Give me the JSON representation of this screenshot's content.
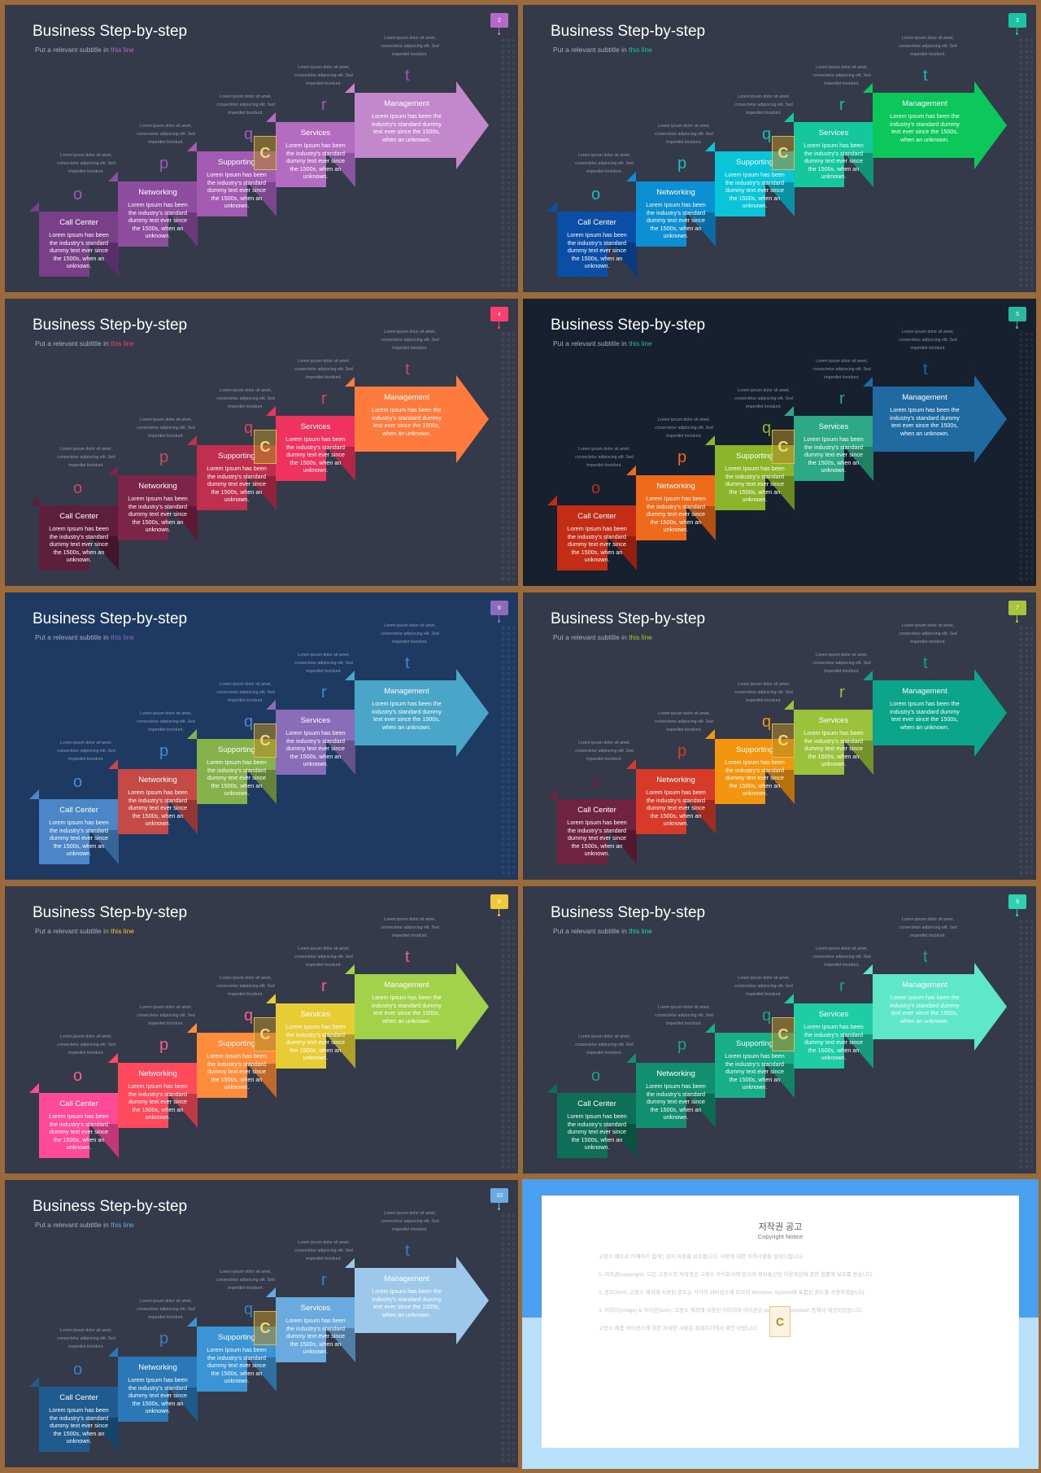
{
  "common": {
    "title": "Business Step-by-step",
    "subtitle_prefix": "Put a relevant subtitle in ",
    "subtitle_highlight": "this line",
    "note_text": "Lorem ipsum dolor sit amet, consectetur adipiscing elit. Sed imperdiet tincidunt.",
    "step_body": "Lorem Ipsum has been the industry's standard dummy text ever since the 1500s, when an unknown.",
    "steps": [
      "Call Center",
      "Networking",
      "Supporting",
      "Services",
      "Management"
    ],
    "letters": [
      "o",
      "p",
      "q",
      "r",
      "t"
    ],
    "logo_letter": "C"
  },
  "slides": [
    {
      "page": "2",
      "bg": "#343a4a",
      "accent": "#b36ac7",
      "letter_color": "#a05cba",
      "colors": [
        "#7a3f89",
        "#8e4d9e",
        "#a35bb2",
        "#b46cc0",
        "#c388cc"
      ],
      "shade": [
        "#5a2e68",
        "#6b3a7a",
        "#7b468d",
        "#8a559e",
        "#9a68ad"
      ]
    },
    {
      "page": "3",
      "bg": "#343a4a",
      "accent": "#19c4a4",
      "letter_color": "#19c0b8",
      "colors": [
        "#0b4ea8",
        "#0d8fd3",
        "#0ac4da",
        "#14c79c",
        "#0cc85a"
      ],
      "shade": [
        "#083a80",
        "#0a6ca0",
        "#0893a5",
        "#0f9676",
        "#099645"
      ]
    },
    {
      "page": "4",
      "bg": "#343a4a",
      "accent": "#ff3d6e",
      "letter_color": "#d34a5d",
      "colors": [
        "#5e1f3d",
        "#7c2548",
        "#c0304e",
        "#f0335e",
        "#ff7a3d"
      ],
      "shade": [
        "#43162c",
        "#5c1a35",
        "#8e233a",
        "#b42546",
        "#c45c2e"
      ]
    },
    {
      "page": "5",
      "bg": "#17202f",
      "accent": "#2bb7a0",
      "letter_color": "#e45b2c",
      "colors": [
        "#c42c16",
        "#ef6a1a",
        "#8bb62a",
        "#2ea985",
        "#1f6aa1"
      ],
      "shade": [
        "#921f0f",
        "#b34f13",
        "#69891f",
        "#217f64",
        "#164f79"
      ]
    },
    {
      "page": "6",
      "bg": "#1e3a63",
      "accent": "#8c6bb8",
      "letter_color": "#4a8ad0",
      "colors": [
        "#4a86c8",
        "#c54a46",
        "#86b24c",
        "#8a6db8",
        "#4aa6c8"
      ],
      "shade": [
        "#376596",
        "#943734",
        "#648539",
        "#67518a",
        "#377c96"
      ]
    },
    {
      "page": "7",
      "bg": "#343a4a",
      "accent": "#a7c43a",
      "letter_color": "#d3502e",
      "colors": [
        "#6e2340",
        "#d73a28",
        "#f4950f",
        "#9ac23a",
        "#0aa58a"
      ],
      "shade": [
        "#521a30",
        "#a12b1e",
        "#b7700b",
        "#74922b",
        "#087c68"
      ]
    },
    {
      "page": "8",
      "bg": "#343a4a",
      "accent": "#f0c93a",
      "letter_color": "#ff5c8a",
      "colors": [
        "#ff4a9a",
        "#ff4a5c",
        "#ff8c3a",
        "#e8cc36",
        "#a2d14a"
      ],
      "shade": [
        "#c0377a",
        "#c03745",
        "#c0692b",
        "#aea028",
        "#7a9d37"
      ]
    },
    {
      "page": "9",
      "bg": "#343a4a",
      "accent": "#2ed1b0",
      "letter_color": "#1aa58a",
      "colors": [
        "#0f6e57",
        "#128f6e",
        "#17ae88",
        "#1ecca6",
        "#5ee8c8"
      ],
      "shade": [
        "#0b5241",
        "#0d6b52",
        "#118366",
        "#16997c",
        "#46ae96"
      ]
    },
    {
      "page": "10",
      "bg": "#343a4a",
      "accent": "#6aaadf",
      "letter_color": "#3a80c8",
      "colors": [
        "#1f5b8f",
        "#2a78b8",
        "#3a94d6",
        "#6aaadf",
        "#9ec8ea"
      ],
      "shade": [
        "#17446b",
        "#1f5a8a",
        "#2c6fa0",
        "#4f80a7",
        "#7696af"
      ]
    }
  ],
  "copyright": {
    "title": "저작권 공고",
    "subtitle": "Copyright Notice",
    "paragraphs": [
      "고정소 폐트로 이해하기 쉽게 | 공지 자동화 보호됩니다. 사용에 대한 주의사항을 알려드립니다.",
      "1. 저작권(copyright): 모든 고정소의 저작권은 고정소 주식회사에 있으며 정보통신망 이용촉진에 관한 법률에 보호를 받습니다.",
      "2. 폰트(font): 고정소 제작에 사용된 폰트는 각각의 라이선스에 따르며 Windows System에 포함된 폰트를 사용하였습니다.",
      "3. 이미지(image) & 아이콘(icon): 고정소 제작에 사용된 이미지와 아이콘은 pixabay와 unsplash 등에서 제공되었습니다.",
      "고정소 제품 라이선스에 대한 자세한 사항은 홈페이지에서 확인 바랍니다."
    ]
  }
}
